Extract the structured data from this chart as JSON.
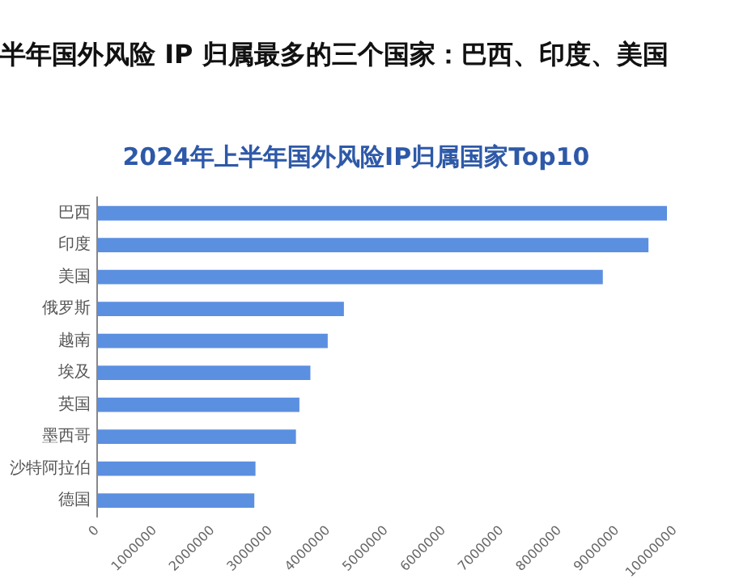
{
  "chart_data": {
    "type": "bar",
    "orientation": "horizontal",
    "title": "半年国外风险 IP 归属最多的三个国家：巴西、印度、美国",
    "subtitle": "2024年上半年国外风险IP归属国家Top10",
    "categories": [
      "巴西",
      "印度",
      "美国",
      "俄罗斯",
      "越南",
      "埃及",
      "英国",
      "墨西哥",
      "沙特阿拉伯",
      "德国"
    ],
    "values": [
      9860000,
      9540000,
      8750000,
      4270000,
      3990000,
      3690000,
      3500000,
      3440000,
      2740000,
      2720000
    ],
    "color": "#5b8fe0",
    "xlim": [
      0,
      10000000
    ],
    "xticks": [
      0,
      1000000,
      2000000,
      3000000,
      4000000,
      5000000,
      6000000,
      7000000,
      8000000,
      9000000,
      10000000
    ],
    "grid": false,
    "legend": false
  }
}
